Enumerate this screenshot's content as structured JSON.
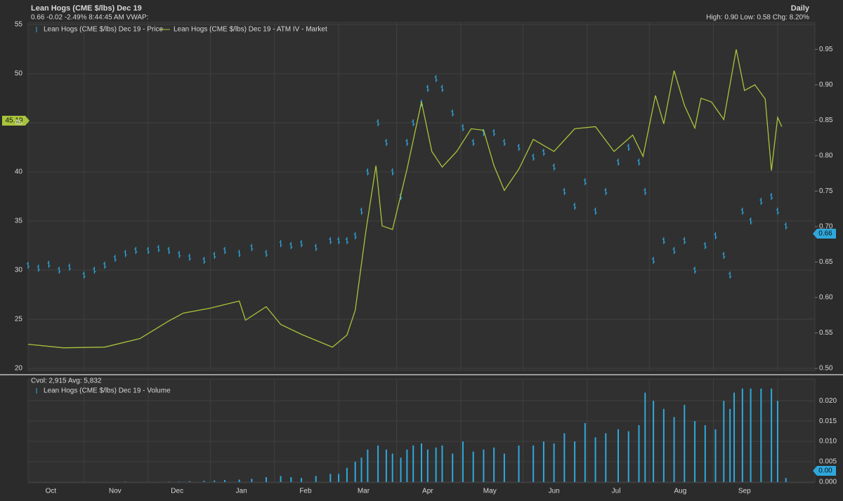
{
  "chart_data": [
    {
      "type": "line",
      "title": "Lean Hogs (CME $/lbs) Dec 19",
      "subtitle": "0.66 -0.02 -2.49% 8:44:45 AM VWAP:",
      "period": "Daily",
      "stats": "High: 0.90 Low: 0.58 Chg: 8.20%",
      "annotations": {
        "left_badge": "45.19",
        "right_badge": "0.66"
      },
      "xlim": [
        0,
        380
      ],
      "ylim": [
        20,
        55
      ],
      "yticks": [
        20,
        25,
        30,
        35,
        40,
        45,
        50,
        55
      ],
      "y2lim": [
        0.5,
        0.985
      ],
      "y2ticks": [
        {
          "value": 0.5,
          "label": "0.50"
        },
        0.55,
        {
          "value": 0.6,
          "label": "0.60"
        },
        0.65,
        {
          "value": 0.7,
          "label": "0.70"
        },
        0.75,
        {
          "value": 0.8,
          "label": "0.80"
        },
        0.85,
        {
          "value": 0.9,
          "label": "0.90"
        },
        0.95
      ],
      "grid": true,
      "series": [
        {
          "name": "Lean Hogs (CME $/lbs) Dec 19 - Price",
          "type": "tick",
          "color": "#2ea8dc",
          "x": [
            0,
            5,
            10,
            15,
            20,
            27,
            32,
            37,
            42,
            47,
            52,
            58,
            63,
            68,
            73,
            78,
            85,
            90,
            95,
            102,
            108,
            115,
            122,
            127,
            132,
            139,
            146,
            150,
            154,
            158,
            161,
            164,
            169,
            173,
            176,
            180,
            183,
            186,
            190,
            193,
            197,
            200,
            205,
            210,
            215,
            220,
            225,
            230,
            237,
            244,
            249,
            254,
            259,
            264,
            269,
            274,
            279,
            285,
            290,
            295,
            298,
            302,
            307,
            312,
            317,
            322,
            327,
            332,
            336,
            339,
            341,
            345,
            349,
            354,
            359,
            362,
            366
          ],
          "values": [
            30.5,
            30.2,
            30.6,
            30,
            30.3,
            29.5,
            30,
            30.5,
            31.2,
            31.7,
            32,
            32,
            32.2,
            32,
            31.6,
            31.3,
            31,
            31.5,
            32,
            31.7,
            32.3,
            31.7,
            32.7,
            32.5,
            32.7,
            32.3,
            33,
            33,
            33,
            33.5,
            36,
            40,
            45,
            43,
            40,
            37.5,
            43,
            45,
            47,
            48.5,
            49.5,
            48.5,
            46,
            44.5,
            43,
            44,
            44,
            43,
            42.5,
            41.5,
            42,
            40.5,
            38,
            36.5,
            39,
            36,
            38,
            41,
            42.5,
            41,
            38,
            31,
            33,
            32,
            33,
            30,
            32.5,
            33.5,
            31.5,
            29.5,
            null,
            36,
            35,
            37,
            37.5,
            36,
            34.5
          ]
        },
        {
          "name": "Lean Hogs (CME $/lbs) Dec 19 - ATM IV - Market",
          "type": "line",
          "color": "#a8c43c",
          "axis": "y2",
          "x": [
            0,
            17,
            37,
            54,
            68,
            75,
            88,
            102,
            105,
            115,
            122,
            132,
            147,
            154,
            158,
            163,
            168,
            171,
            176,
            183,
            190,
            195,
            200,
            207,
            214,
            220,
            225,
            230,
            237,
            244,
            254,
            264,
            274,
            283,
            292,
            297,
            303,
            307,
            312,
            317,
            322,
            325,
            330,
            336,
            342,
            346,
            351,
            356,
            359,
            362,
            364
          ],
          "values": [
            0.534,
            0.529,
            0.53,
            0.542,
            0.567,
            0.578,
            0.585,
            0.595,
            0.568,
            0.587,
            0.562,
            0.548,
            0.53,
            0.547,
            0.582,
            0.691,
            0.786,
            0.701,
            0.696,
            0.781,
            0.876,
            0.806,
            0.784,
            0.806,
            0.838,
            0.836,
            0.786,
            0.751,
            0.781,
            0.823,
            0.806,
            0.838,
            0.841,
            0.806,
            0.829,
            0.799,
            0.885,
            0.845,
            0.92,
            0.871,
            0.839,
            0.881,
            0.876,
            0.851,
            0.95,
            0.892,
            0.9,
            0.88,
            0.779,
            0.854,
            0.841
          ]
        }
      ]
    },
    {
      "type": "bar",
      "title": "Cvol: 2,915 Avg: 5,832",
      "annotations": {
        "right_badge": "0.00"
      },
      "xlim": [
        0,
        380
      ],
      "xticks": [
        {
          "value": 11,
          "label": "Oct"
        },
        {
          "value": 42,
          "label": "Nov"
        },
        {
          "value": 72,
          "label": "Dec"
        },
        {
          "value": 103,
          "label": "Jan"
        },
        {
          "value": 134,
          "label": "Feb"
        },
        {
          "value": 162,
          "label": "Mar"
        },
        {
          "value": 193,
          "label": "Apr"
        },
        {
          "value": 223,
          "label": "May"
        },
        {
          "value": 254,
          "label": "Jun"
        },
        {
          "value": 284,
          "label": "Jul"
        },
        {
          "value": 315,
          "label": "Aug"
        },
        {
          "value": 346,
          "label": "Sep"
        }
      ],
      "xgrid": [
        27,
        58,
        88,
        119,
        150,
        178,
        209,
        239,
        270,
        300,
        331,
        362
      ],
      "ylim": [
        0,
        0.024
      ],
      "yticks": [
        {
          "value": 0,
          "label": "0.000"
        },
        {
          "value": 0.005,
          "label": "0.005"
        },
        {
          "value": 0.01,
          "label": "0.010"
        },
        {
          "value": 0.015,
          "label": "0.015"
        },
        {
          "value": 0.02,
          "label": "0.020"
        }
      ],
      "grid": true,
      "series": [
        {
          "name": "Lean Hogs (CME $/lbs) Dec 19 - Volume",
          "color": "#2ea8dc",
          "x": [
            0,
            5,
            10,
            15,
            20,
            27,
            32,
            37,
            42,
            47,
            52,
            58,
            63,
            68,
            73,
            78,
            85,
            90,
            95,
            102,
            108,
            115,
            122,
            127,
            132,
            139,
            146,
            150,
            154,
            158,
            161,
            164,
            169,
            173,
            176,
            180,
            183,
            186,
            190,
            193,
            197,
            200,
            205,
            210,
            215,
            220,
            225,
            230,
            237,
            244,
            249,
            254,
            259,
            264,
            269,
            274,
            279,
            285,
            290,
            295,
            298,
            302,
            307,
            312,
            317,
            322,
            327,
            332,
            336,
            339,
            341,
            345,
            349,
            354,
            359,
            362,
            366
          ],
          "values": [
            0,
            0,
            0,
            0,
            0,
            0,
            0,
            0,
            0,
            0.0001,
            0,
            0,
            0,
            0.0001,
            0.0001,
            0.0002,
            0.0003,
            0.0004,
            0.0005,
            0.0006,
            0.0008,
            0.0012,
            0.0015,
            0.0012,
            0.001,
            0.0015,
            0.002,
            0.002,
            0.0035,
            0.005,
            0.006,
            0.008,
            0.009,
            0.008,
            0.007,
            0.006,
            0.008,
            0.009,
            0.0095,
            0.008,
            0.0085,
            0.009,
            0.007,
            0.01,
            0.0075,
            0.008,
            0.0085,
            0.007,
            0.009,
            0.009,
            0.01,
            0.0095,
            0.012,
            0.01,
            0.0145,
            0.011,
            0.012,
            0.013,
            0.0125,
            0.014,
            0.022,
            0.02,
            0.018,
            0.016,
            0.019,
            0.015,
            0.014,
            0.013,
            0.02,
            0.018,
            0.022,
            0.023,
            0.023,
            0.023,
            0.023,
            0.02,
            0.001
          ]
        }
      ]
    }
  ]
}
